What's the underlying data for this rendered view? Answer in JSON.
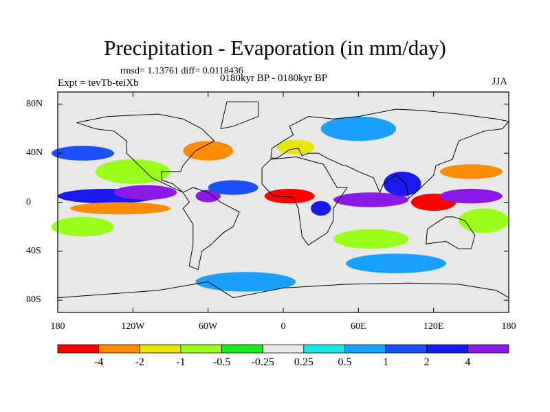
{
  "title": "Precipitation - Evaporation (in mm/day)",
  "stats": "rmsd= 1.13761 diff= 0.0118436",
  "experiment": "Expt = tevTb-teiXb",
  "period": "0180kyr BP - 0180kyr BP",
  "season": "JJA",
  "y_ticks": [
    {
      "label": "80N",
      "lat": 80
    },
    {
      "label": "40N",
      "lat": 40
    },
    {
      "label": "0",
      "lat": 0
    },
    {
      "label": "40S",
      "lat": -40
    },
    {
      "label": "80S",
      "lat": -80
    }
  ],
  "x_ticks": [
    {
      "label": "180",
      "lon": -180
    },
    {
      "label": "120W",
      "lon": -120
    },
    {
      "label": "60W",
      "lon": -60
    },
    {
      "label": "0",
      "lon": 0
    },
    {
      "label": "60E",
      "lon": 60
    },
    {
      "label": "120E",
      "lon": 120
    },
    {
      "label": "180",
      "lon": 180
    }
  ],
  "colorbar": {
    "colors": [
      "#ff0000",
      "#ff8c00",
      "#e6e600",
      "#9aff1a",
      "#1aee1a",
      "#e8e8e8",
      "#1ae6e6",
      "#1aa0ff",
      "#1a50ff",
      "#1a1aee",
      "#8c1ae6"
    ],
    "labels": [
      "-4",
      "-2",
      "-1",
      "-0.5",
      "-0.25",
      "0.25",
      "0.5",
      "1",
      "2",
      "4"
    ]
  },
  "field_regions": [
    {
      "lon": -140,
      "lat": 5,
      "rx": 40,
      "ry": 6,
      "level": 9
    },
    {
      "lon": -110,
      "lat": 8,
      "rx": 25,
      "ry": 6,
      "level": 10
    },
    {
      "lon": -130,
      "lat": -5,
      "rx": 40,
      "ry": 5,
      "level": 1
    },
    {
      "lon": -160,
      "lat": -20,
      "rx": 25,
      "ry": 8,
      "level": 3
    },
    {
      "lon": -120,
      "lat": 25,
      "rx": 30,
      "ry": 10,
      "level": 3
    },
    {
      "lon": -60,
      "lat": 42,
      "rx": 20,
      "ry": 8,
      "level": 1
    },
    {
      "lon": -60,
      "lat": 5,
      "rx": 10,
      "ry": 5,
      "level": 10
    },
    {
      "lon": -40,
      "lat": 12,
      "rx": 20,
      "ry": 6,
      "level": 8
    },
    {
      "lon": 5,
      "lat": 5,
      "rx": 20,
      "ry": 6,
      "level": 0
    },
    {
      "lon": 30,
      "lat": -5,
      "rx": 8,
      "ry": 6,
      "level": 9
    },
    {
      "lon": 70,
      "lat": 2,
      "rx": 30,
      "ry": 6,
      "level": 10
    },
    {
      "lon": 95,
      "lat": 15,
      "rx": 15,
      "ry": 10,
      "level": 9
    },
    {
      "lon": 120,
      "lat": 0,
      "rx": 18,
      "ry": 7,
      "level": 0
    },
    {
      "lon": 150,
      "lat": 25,
      "rx": 25,
      "ry": 6,
      "level": 1
    },
    {
      "lon": 150,
      "lat": 5,
      "rx": 25,
      "ry": 6,
      "level": 10
    },
    {
      "lon": 160,
      "lat": -15,
      "rx": 20,
      "ry": 10,
      "level": 3
    },
    {
      "lon": -160,
      "lat": 40,
      "rx": 25,
      "ry": 6,
      "level": 8
    },
    {
      "lon": -30,
      "lat": -65,
      "rx": 40,
      "ry": 8,
      "level": 7
    },
    {
      "lon": 90,
      "lat": -50,
      "rx": 40,
      "ry": 8,
      "level": 7
    },
    {
      "lon": 60,
      "lat": 60,
      "rx": 30,
      "ry": 10,
      "level": 7
    },
    {
      "lon": 10,
      "lat": 45,
      "rx": 15,
      "ry": 6,
      "level": 2
    },
    {
      "lon": 70,
      "lat": -30,
      "rx": 30,
      "ry": 8,
      "level": 3
    }
  ]
}
